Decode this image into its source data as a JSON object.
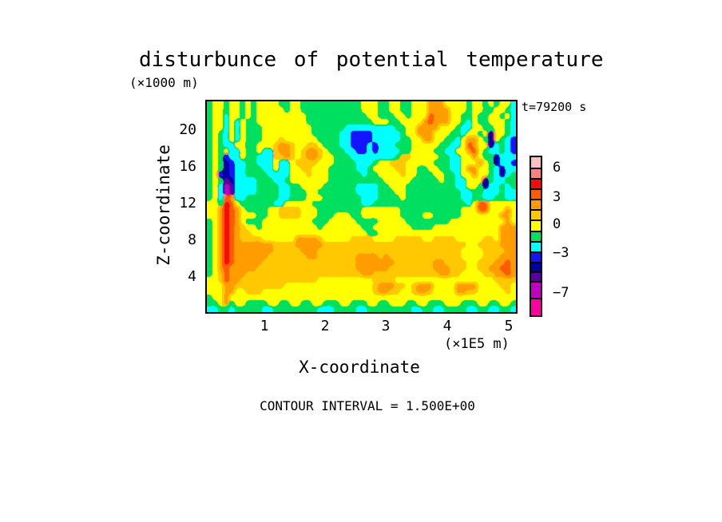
{
  "title": "disturbunce of potential temperature",
  "annotations": {
    "time_label": "t=79200 s",
    "contour_note": "CONTOUR INTERVAL = 1.500E+00"
  },
  "y_axis": {
    "unit_label": "(×1000 m)",
    "axis_label": "Z-coordinate",
    "ticks": [
      "20",
      "16",
      "12",
      "8",
      "4"
    ]
  },
  "x_axis": {
    "unit_label": "(×1E5 m)",
    "axis_label": "X-coordinate",
    "ticks": [
      "1",
      "2",
      "3",
      "4",
      "5"
    ]
  },
  "colorbar": {
    "labels": [
      {
        "text": "6",
        "y": 15
      },
      {
        "text": "3",
        "y": 52
      },
      {
        "text": "0",
        "y": 86
      },
      {
        "text": "−3",
        "y": 122
      },
      {
        "text": "−7",
        "y": 172
      }
    ],
    "segments": [
      {
        "color": "#f8c0c0",
        "h": 13
      },
      {
        "color": "#f58585",
        "h": 13
      },
      {
        "color": "#fa0a0a",
        "h": 13
      },
      {
        "color": "#ff5c00",
        "h": 13
      },
      {
        "color": "#ff9c00",
        "h": 13
      },
      {
        "color": "#ffc800",
        "h": 13
      },
      {
        "color": "#ffff00",
        "h": 14
      },
      {
        "color": "#00e060",
        "h": 13
      },
      {
        "color": "#00ffff",
        "h": 13
      },
      {
        "color": "#1414ff",
        "h": 13
      },
      {
        "color": "#0000a0",
        "h": 12
      },
      {
        "color": "#5a00a0",
        "h": 12
      },
      {
        "color": "#c000c0",
        "h": 21
      },
      {
        "color": "#ff00a0",
        "h": 22
      }
    ]
  },
  "chart_data": {
    "type": "heatmap",
    "title": "disturbunce of potential temperature",
    "xlabel": "X-coordinate",
    "ylabel": "Z-coordinate",
    "x_units": "×1E5 m",
    "y_units": "×1000 m",
    "x_range": [
      0,
      5.15
    ],
    "y_range": [
      0,
      23.3
    ],
    "x_ticks": [
      1,
      2,
      3,
      4,
      5
    ],
    "y_ticks": [
      4,
      8,
      12,
      16,
      20
    ],
    "time_seconds": 79200,
    "contour_interval": 1.5,
    "colorbar_tick_values": [
      6,
      3,
      0,
      -3,
      -7
    ],
    "legend_position": "right",
    "grid_lines": false,
    "palette": [
      "#f8c0c0",
      "#f58585",
      "#fa0a0a",
      "#ff5c00",
      "#ff9c00",
      "#ffc800",
      "#ffff00",
      "#00e060",
      "#00ffff",
      "#1414ff",
      "#0000a0",
      "#5a00a0",
      "#c000c0",
      "#ff00a0"
    ],
    "palette_names": [
      "light-pink",
      "salmon",
      "red",
      "orange-red",
      "orange",
      "gold",
      "yellow",
      "green",
      "cyan",
      "blue",
      "navy",
      "violet",
      "magenta-purple",
      "magenta-pink"
    ],
    "grid": {
      "cols": 56,
      "rows_count": 36,
      "encoding": "each char is a hex index 0-d into palette; spaces are ignored; row 0 = top of plot (z=23.3 km), row 35 = bottom (z=0); col 0 = x=0, col 55 = x=5.15E5 m",
      "rows": [
        "76676676 76666776 67777777 77776667 76677666 44466667 66767668",
        "76676676 76666676 67777777 77776667 76677666 44446667 66776678",
        "76686676 76666666 66777777 77777667 77667666 34446677 67766768",
        "76686867 76666666 66777777 77777766 67766664 34446678 67766678",
        "76686867 77666666 66677777 78888888 88776644 44666788 66776678",
        "76786867 77666666 66677777 88999988 88876644 46667786 676a6678",
        "76786867 77666566 66667777 88999988 88877664 46677864 467a6789",
        "76788667 76665445 66556777 88999898 88777666 66778863 466a8789",
        "76768867 76885445 65445677 78899898 88877666 67788664 36788789",
        "76798867 78885545 65445667 77888888 88755666 66778866 4677a888",
        "767a9887 78886886 55556667 77788876 65556666 67778866 6467a889",
        "767a9887 77886886 65566677 77788766 66556677 66778864 46678a88",
        "769a9887 77788886 66566677 77778776 66656677 76677866 46678a87",
        "767ba888 87778876 66666677 77777777 66666777 77677886 66a78877",
        "768cb888 87777887 76666777 77788887 76667777 77777886 67a88787",
        "768cb888 87777887 77667777 77788887 77667777 77777788 77888788",
        "76834887 77777887 77666777 77778887 77767777 77777788 77887788",
        "66723677 77778866 66677777 77778877 77777777 77777778 63366666",
        "66423467 77766555 56667777 77776666 66677777 77777766 63366646",
        "66423466 67766555 56667776 66776666 66677776 67777766 66666446",
        "76423467 77666666 66677766 66677776 66667777 77776666 66666646",
        "76423456 67666666 66667666 66667766 66666777 76666666 66666444",
        "76423455 66666666 66666666 66666776 66666666 66666666 66666444",
        "76423455 55666666 44445666 66555566 66555556 65555666 66556444",
        "76423444 44445555 44444555 55555555 55555555 55555556 65555444",
        "76423444 44445555 54445555 55555555 55555555 55555566 66555544",
        "76423444 44455555 55445555 55544445 45555555 55555566 66555444",
        "76423444 44555555 55555555 55544444 44555555 54455556 65554434",
        "76434444 45555555 55555555 55544444 45555555 54445556 65544334",
        "76534445 55555555 55555555 55554455 55555555 55445566 66554434",
        "66534455 55555555 55556666 66666655 55666666 66666666 66665555",
        "66644555 55555566 66666666 66666654 44556544 46666444 46666556",
        "66644665 55666666 66666666 66666654 45566544 56666445 56666656",
        "76646666 66666666 66666666 66666666 66666666 66666666 66666666",
        "77647667 77766776 67766777 66777667 76667766 77766677 76677667",
        "88778777 77887777 77778887 77788777 77777887 78877778 87788778"
      ]
    }
  }
}
